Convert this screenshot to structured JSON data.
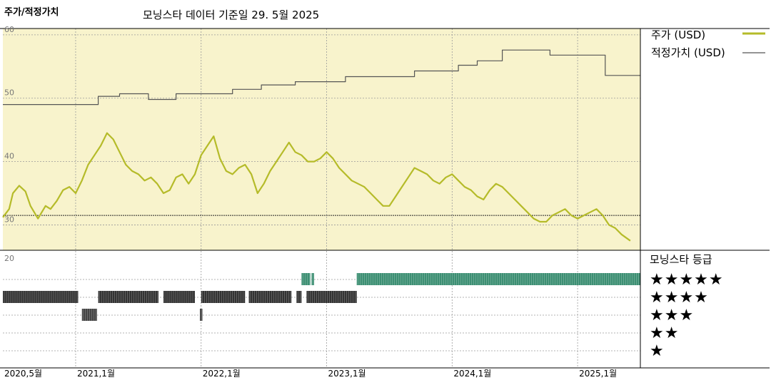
{
  "header": {
    "title": "주가/적정가치",
    "subtitle": "모닝스타 데이터 기준일 29. 5월 2025"
  },
  "legend": {
    "price_label": "주가 (USD)",
    "fair_value_label": "적정가치 (USD)",
    "rating_title": "모닝스타 등급",
    "stars": [
      "★★★★★",
      "★★★★",
      "★★★",
      "★★",
      "★"
    ]
  },
  "colors": {
    "price_line": "#b5bb29",
    "fair_value_line": "#555555",
    "panel_bg": "#f8f3cc",
    "five_star_band": "#3d8f73",
    "four_star_band": "#333333",
    "three_star_band": "#444444"
  },
  "chart_data": {
    "type": "line",
    "x_unit": "years",
    "xlim": [
      2020.42,
      2025.5
    ],
    "ylim": [
      26,
      61
    ],
    "ytick_labels": [
      "60",
      "50",
      "40",
      "30"
    ],
    "xtick_labels": [
      "2020,5월",
      "2021,1월",
      "2022,1월",
      "2023,1월",
      "2024,1월",
      "2025,1월"
    ],
    "xtick_values": [
      2020.42,
      2021.0,
      2022.0,
      2023.0,
      2024.0,
      2025.0
    ],
    "rating_axis_label": "20",
    "reference_line": 31.5,
    "series": [
      {
        "name": "주가 (USD)",
        "x": [
          2020.42,
          2020.47,
          2020.5,
          2020.55,
          2020.6,
          2020.64,
          2020.7,
          2020.76,
          2020.8,
          2020.85,
          2020.9,
          2020.95,
          2021.0,
          2021.05,
          2021.1,
          2021.15,
          2021.2,
          2021.25,
          2021.3,
          2021.35,
          2021.4,
          2021.45,
          2021.5,
          2021.55,
          2021.6,
          2021.65,
          2021.7,
          2021.75,
          2021.8,
          2021.85,
          2021.9,
          2021.95,
          2022.0,
          2022.05,
          2022.1,
          2022.15,
          2022.2,
          2022.25,
          2022.3,
          2022.35,
          2022.4,
          2022.45,
          2022.5,
          2022.55,
          2022.6,
          2022.65,
          2022.7,
          2022.75,
          2022.8,
          2022.85,
          2022.9,
          2022.95,
          2023.0,
          2023.05,
          2023.1,
          2023.15,
          2023.2,
          2023.25,
          2023.3,
          2023.35,
          2023.4,
          2023.45,
          2023.5,
          2023.55,
          2023.6,
          2023.65,
          2023.7,
          2023.75,
          2023.8,
          2023.85,
          2023.9,
          2023.95,
          2024.0,
          2024.05,
          2024.1,
          2024.15,
          2024.2,
          2024.25,
          2024.3,
          2024.35,
          2024.4,
          2024.45,
          2024.5,
          2024.55,
          2024.6,
          2024.65,
          2024.7,
          2024.75,
          2024.8,
          2024.85,
          2024.9,
          2024.95,
          2025.0,
          2025.05,
          2025.1,
          2025.15,
          2025.2,
          2025.25,
          2025.3,
          2025.35,
          2025.42
        ],
        "values": [
          31.2,
          32.5,
          35.0,
          36.2,
          35.3,
          33.0,
          31.0,
          33.0,
          32.5,
          33.8,
          35.5,
          36.0,
          35.0,
          37.0,
          39.5,
          41.0,
          42.5,
          44.5,
          43.5,
          41.5,
          39.5,
          38.5,
          38.0,
          37.0,
          37.5,
          36.5,
          35.0,
          35.5,
          37.5,
          38.0,
          36.5,
          38.0,
          41.0,
          42.5,
          44.0,
          40.5,
          38.5,
          38.0,
          39.0,
          39.5,
          38.0,
          35.0,
          36.5,
          38.5,
          40.0,
          41.5,
          43.0,
          41.5,
          41.0,
          40.0,
          40.0,
          40.5,
          41.5,
          40.5,
          39.0,
          38.0,
          37.0,
          36.5,
          36.0,
          35.0,
          34.0,
          33.0,
          33.0,
          34.5,
          36.0,
          37.5,
          39.0,
          38.5,
          38.0,
          37.0,
          36.5,
          37.5,
          38.0,
          37.0,
          36.0,
          35.5,
          34.5,
          34.0,
          35.5,
          36.5,
          36.0,
          35.0,
          34.0,
          33.0,
          32.0,
          31.0,
          30.5,
          30.5,
          31.5,
          32.0,
          32.5,
          31.5,
          31.0,
          31.5,
          32.0,
          32.5,
          31.5,
          30.0,
          29.5,
          28.5,
          27.5
        ]
      },
      {
        "name": "적정가치 (USD)",
        "x": [
          2020.42,
          2021.18,
          2021.18,
          2021.35,
          2021.35,
          2021.58,
          2021.58,
          2021.8,
          2021.8,
          2022.25,
          2022.25,
          2022.48,
          2022.48,
          2022.75,
          2022.75,
          2023.15,
          2023.15,
          2023.7,
          2023.7,
          2024.05,
          2024.05,
          2024.2,
          2024.2,
          2024.4,
          2024.4,
          2024.78,
          2024.78,
          2025.22,
          2025.22,
          2025.5
        ],
        "values": [
          49.0,
          49.0,
          50.3,
          50.3,
          50.7,
          50.7,
          49.8,
          49.8,
          50.7,
          50.7,
          51.4,
          51.4,
          52.1,
          52.1,
          52.6,
          52.6,
          53.4,
          53.4,
          54.3,
          54.3,
          55.2,
          55.2,
          55.9,
          55.9,
          57.6,
          57.6,
          56.8,
          56.8,
          53.6,
          53.6
        ]
      }
    ],
    "ratings": [
      {
        "stars": 5,
        "ranges": [
          [
            2022.8,
            2022.87
          ],
          [
            2022.88,
            2022.9
          ],
          [
            2023.24,
            2025.5
          ]
        ]
      },
      {
        "stars": 4,
        "ranges": [
          [
            2020.42,
            2021.02
          ],
          [
            2021.18,
            2021.66
          ],
          [
            2021.7,
            2021.95
          ],
          [
            2022.0,
            2022.35
          ],
          [
            2022.38,
            2022.72
          ],
          [
            2022.76,
            2022.8
          ],
          [
            2022.84,
            2023.24
          ]
        ]
      },
      {
        "stars": 3,
        "ranges": [
          [
            2021.05,
            2021.17
          ],
          [
            2021.99,
            2022.01
          ]
        ]
      }
    ]
  }
}
